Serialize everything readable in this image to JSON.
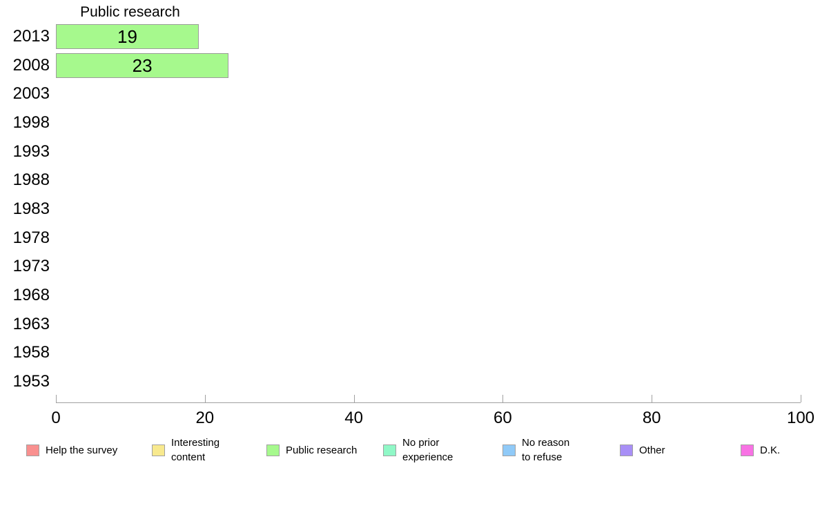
{
  "chart_data": {
    "type": "bar",
    "orientation": "horizontal",
    "title": "Public research",
    "categories": [
      "2013",
      "2008",
      "2003",
      "1998",
      "1993",
      "1988",
      "1983",
      "1978",
      "1973",
      "1968",
      "1963",
      "1958",
      "1953"
    ],
    "values": [
      19,
      23,
      null,
      null,
      null,
      null,
      null,
      null,
      null,
      null,
      null,
      null,
      null
    ],
    "xlabel": "",
    "ylabel": "",
    "xlim": [
      0,
      100
    ],
    "x_ticks": [
      "0",
      "20",
      "40",
      "60",
      "80",
      "100"
    ],
    "grid": "off",
    "bar_color": "#a6f98d",
    "bar_border_color": "#9c9c9c",
    "axis_color": "#a0a0a0",
    "legend_position": "bottom",
    "legend": {
      "items": [
        {
          "label": "Help the survey",
          "color": "#f9908f"
        },
        {
          "label": "Interesting\ncontent",
          "color": "#f8e98e"
        },
        {
          "label": "Public research",
          "color": "#a6f98d"
        },
        {
          "label": "No prior\nexperience",
          "color": "#90f8c7"
        },
        {
          "label": "No reason\nto refuse",
          "color": "#90caf8"
        },
        {
          "label": "Other",
          "color": "#a88ff6"
        },
        {
          "label": "D.K.",
          "color": "#f872e4"
        }
      ]
    }
  }
}
